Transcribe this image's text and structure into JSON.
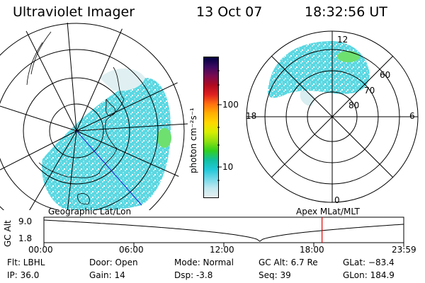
{
  "header": {
    "title": "Ultraviolet Imager",
    "date": "13 Oct 07",
    "time": "18:32:56 UT"
  },
  "colorbar": {
    "unit_label": "photon cm⁻²s⁻¹",
    "tick_100": "100",
    "tick_10": "10",
    "colors": [
      "#000040",
      "#3a0a60",
      "#7a0a50",
      "#b00a20",
      "#e02020",
      "#ff7010",
      "#ffb000",
      "#ffd800",
      "#d8ee00",
      "#90e010",
      "#30d020",
      "#10c0a0",
      "#20c8d8",
      "#70d8e8",
      "#c0e8f0",
      "#e8f0f0"
    ]
  },
  "right_map": {
    "mlt_top": "12",
    "mlt_left": "18",
    "mlt_right": "6",
    "mlt_bottom": "0",
    "lat_labels": [
      "60",
      "70",
      "80"
    ]
  },
  "timeline": {
    "left_title": "Geographic Lat/Lon",
    "right_title": "Apex  MLat/MLT",
    "y_axis_label": "GC Alt",
    "y_max": "9.0",
    "y_min": "1.8",
    "x_ticks": [
      "00:00",
      "06:00",
      "12:00",
      "18:00",
      "23:59"
    ],
    "marker_time_hours": 18.55,
    "marker_color": "#e00000"
  },
  "footer": {
    "flt": "Flt: LBHL",
    "ip": "IP: 36.0",
    "door": "Door: Open",
    "gain": "Gain: 14",
    "mode": "Mode: Normal",
    "dsp": "Dsp:    -3.8",
    "gc_alt": "GC Alt: 6.7 Re",
    "seq": "Seq: 39",
    "glat": "GLat: −83.4",
    "glon": "GLon: 184.9"
  }
}
